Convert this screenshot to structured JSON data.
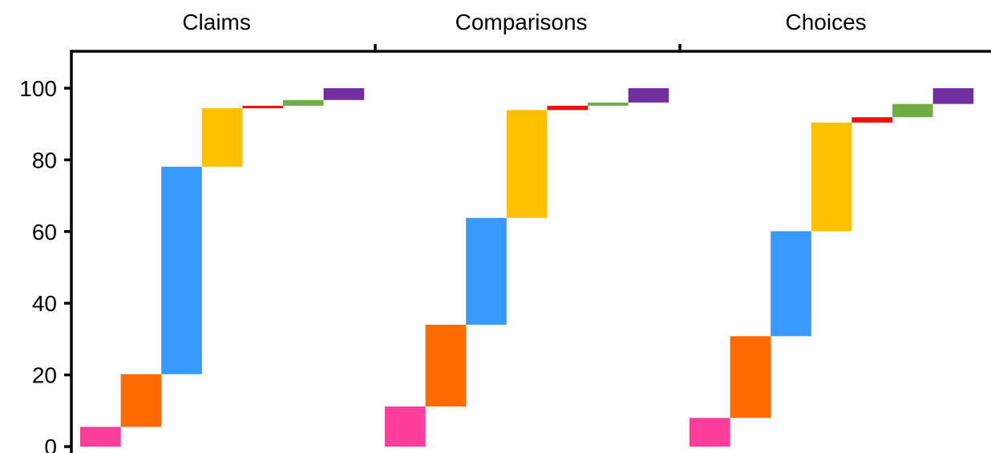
{
  "chart_data": {
    "type": "bar",
    "subtype": "waterfall",
    "title": "",
    "xlabel": "",
    "ylabel": "",
    "ylim": [
      0,
      100
    ],
    "yticks": [
      0,
      20,
      40,
      60,
      80,
      100
    ],
    "grid": false,
    "legend": "none",
    "segment_colors": [
      "#ff3d9a",
      "#ff6a00",
      "#3899ff",
      "#ffc000",
      "#ee1111",
      "#70ad47",
      "#7030a0"
    ],
    "panels": [
      {
        "label": "Claims",
        "segments": [
          {
            "start": 0,
            "end": 5.5
          },
          {
            "start": 5.5,
            "end": 20.2
          },
          {
            "start": 20.2,
            "end": 78.1
          },
          {
            "start": 78.1,
            "end": 94.4
          },
          {
            "start": 94.4,
            "end": 95.1
          },
          {
            "start": 95.1,
            "end": 96.7
          },
          {
            "start": 96.7,
            "end": 100
          }
        ]
      },
      {
        "label": "Comparisons",
        "segments": [
          {
            "start": 0,
            "end": 11.2
          },
          {
            "start": 11.2,
            "end": 34.0
          },
          {
            "start": 34.0,
            "end": 63.8
          },
          {
            "start": 63.8,
            "end": 93.9
          },
          {
            "start": 93.9,
            "end": 95.1
          },
          {
            "start": 95.1,
            "end": 96.0
          },
          {
            "start": 96.0,
            "end": 100
          }
        ]
      },
      {
        "label": "Choices",
        "segments": [
          {
            "start": 0,
            "end": 8.0
          },
          {
            "start": 8.0,
            "end": 30.8
          },
          {
            "start": 30.8,
            "end": 60.1
          },
          {
            "start": 60.1,
            "end": 90.4
          },
          {
            "start": 90.4,
            "end": 91.9
          },
          {
            "start": 91.9,
            "end": 95.6
          },
          {
            "start": 95.6,
            "end": 100
          }
        ]
      }
    ]
  }
}
